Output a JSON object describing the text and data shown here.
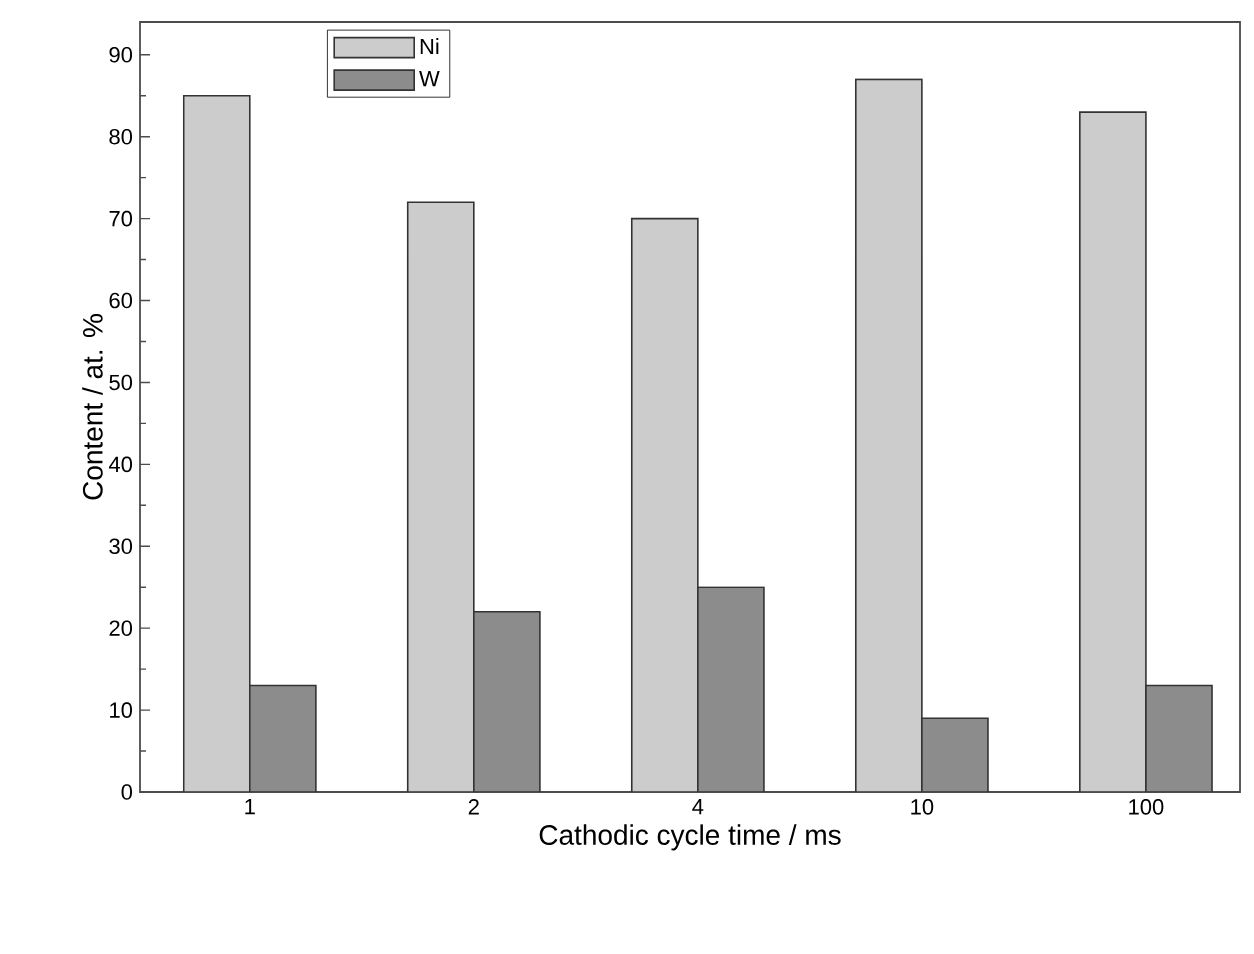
{
  "chart_data": {
    "type": "bar",
    "xlabel": "Cathodic cycle time / ms",
    "ylabel": "Content / at. %",
    "categories": [
      "1",
      "2",
      "4",
      "10",
      "100"
    ],
    "series": [
      {
        "name": "Ni",
        "color": "#cccccc",
        "values": [
          85,
          72,
          70,
          87,
          83
        ]
      },
      {
        "name": "W",
        "color": "#8c8c8c",
        "values": [
          13,
          22,
          25,
          9,
          13
        ]
      }
    ],
    "ylim": [
      0,
      94
    ],
    "yticks": [
      0,
      10,
      20,
      30,
      40,
      50,
      60,
      70,
      80,
      90
    ],
    "grid": false,
    "legend": "top left"
  }
}
